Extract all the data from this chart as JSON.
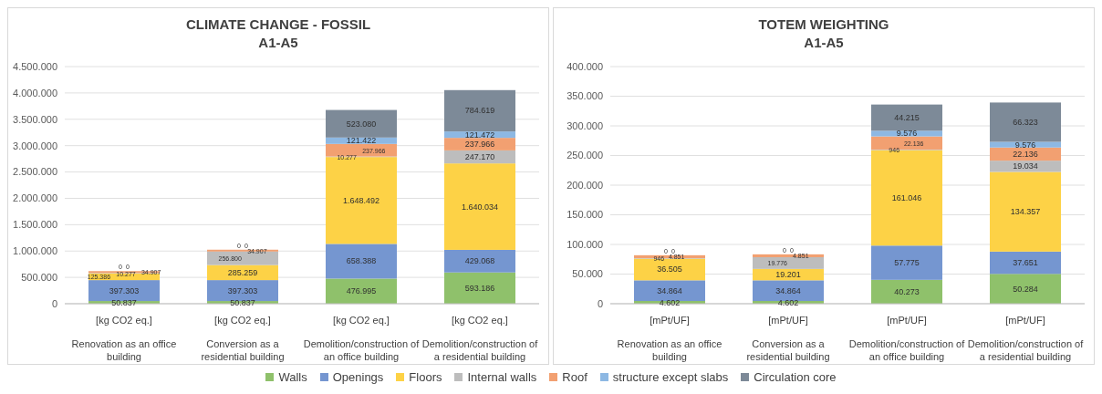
{
  "chart_data": [
    {
      "type": "bar",
      "title": "CLIMATE CHANGE - FOSSIL\nA1-A5",
      "stacked": true,
      "legend": "bottom",
      "grid": "y",
      "categories": [
        "[kg CO2 eq.]\nRenovation as an office building",
        "[kg CO2 eq.]\nConversion as a residential building",
        "[kg CO2 eq.]\nDemolition/construction of an office building",
        "[kg CO2 eq.]\nDemolition/construction of a residential building"
      ],
      "ylim": [
        0,
        4500000
      ],
      "yticks": [
        0,
        {
          "value": 500000,
          "label": "500.000"
        },
        {
          "value": 1000000,
          "label": "1.000.000"
        },
        {
          "value": 1500000,
          "label": "1.500.000"
        },
        {
          "value": 2000000,
          "label": "2.000.000"
        },
        {
          "value": 2500000,
          "label": "2.500.000"
        },
        {
          "value": 3000000,
          "label": "3.000.000"
        },
        {
          "value": 3500000,
          "label": "3.500.000"
        },
        {
          "value": 4000000,
          "label": "4.000.000"
        },
        {
          "value": 4500000,
          "label": "4.500.000"
        }
      ],
      "series": [
        {
          "name": "Walls",
          "color": "#8fc16b",
          "values": [
            50837,
            50837,
            476995,
            593186
          ],
          "value_labels": [
            "50.837",
            "50.837",
            "476.995",
            "593.186"
          ]
        },
        {
          "name": "Openings",
          "color": "#7596d0",
          "values": [
            397303,
            397303,
            658388,
            429068
          ],
          "value_labels": [
            "397.303",
            "397.303",
            "658.388",
            "429.068"
          ]
        },
        {
          "name": "Floors",
          "color": "#fdd246",
          "values": [
            125386,
            285259,
            1648492,
            1640034
          ],
          "value_labels": [
            "125.386",
            "285.259",
            "1.648.492",
            "1.640.034"
          ]
        },
        {
          "name": "Internal walls",
          "color": "#bdbdbd",
          "values": [
            10277,
            256800,
            10277,
            247170
          ],
          "value_labels": [
            "10.277",
            "256.800",
            "10.277",
            "247.170"
          ]
        },
        {
          "name": "Roof",
          "color": "#f2a071",
          "values": [
            34907,
            34907,
            237966,
            237966
          ],
          "value_labels": [
            "34.907",
            "34.907",
            "237.966",
            "237.966"
          ]
        },
        {
          "name": "structure except slabs",
          "color": "#8db8e3",
          "values": [
            0,
            0,
            121422,
            121472
          ],
          "value_labels": [
            "0",
            "0",
            "121.422",
            "121.472"
          ]
        },
        {
          "name": "Circulation core",
          "color": "#7d8a98",
          "values": [
            0,
            0,
            523080,
            784619
          ],
          "value_labels": [
            "0",
            "0",
            "523.080",
            "784.619"
          ]
        }
      ]
    },
    {
      "type": "bar",
      "title": "TOTEM WEIGHTING\nA1-A5",
      "stacked": true,
      "grid": "y",
      "categories": [
        "[mPt/UF]\nRenovation as an office building",
        "[mPt/UF]\nConversion as a residential building",
        "[mPt/UF]\nDemolition/construction of an office building",
        "[mPt/UF]\nDemolition/construction of a residential building"
      ],
      "ylim": [
        0,
        400000
      ],
      "yticks": [
        0,
        {
          "value": 50000,
          "label": "50.000"
        },
        {
          "value": 100000,
          "label": "100.000"
        },
        {
          "value": 150000,
          "label": "150.000"
        },
        {
          "value": 200000,
          "label": "200.000"
        },
        {
          "value": 250000,
          "label": "250.000"
        },
        {
          "value": 300000,
          "label": "300.000"
        },
        {
          "value": 350000,
          "label": "350.000"
        },
        {
          "value": 400000,
          "label": "400.000"
        }
      ],
      "series": [
        {
          "color": "#8fc16b",
          "values": [
            4602,
            4602,
            40273,
            50284
          ],
          "value_labels": [
            "4.602",
            "4.602",
            "40.273",
            "50.284"
          ]
        },
        {
          "color": "#7596d0",
          "values": [
            34864,
            34864,
            57775,
            37651
          ],
          "value_labels": [
            "34.864",
            "34.864",
            "57.775",
            "37.651"
          ]
        },
        {
          "color": "#fdd246",
          "values": [
            36505,
            19201,
            161046,
            134357
          ],
          "value_labels": [
            "36.505",
            "19.201",
            "161.046",
            "134.357"
          ]
        },
        {
          "color": "#bdbdbd",
          "values": [
            946,
            19776,
            946,
            19034
          ],
          "value_labels": [
            "946",
            "19.776",
            "946",
            "19.034"
          ]
        },
        {
          "color": "#f2a071",
          "values": [
            4851,
            4851,
            22136,
            22136
          ],
          "value_labels": [
            "4.851",
            "4.851",
            "22.136",
            "22.136"
          ]
        },
        {
          "color": "#8db8e3",
          "values": [
            0,
            0,
            9576,
            9576
          ],
          "value_labels": [
            "0",
            "0",
            "9.576",
            "9.576"
          ]
        },
        {
          "color": "#7d8a98",
          "values": [
            0,
            0,
            44215,
            66323
          ],
          "value_labels": [
            "0",
            "0",
            "44.215",
            "66.323"
          ]
        }
      ]
    }
  ]
}
